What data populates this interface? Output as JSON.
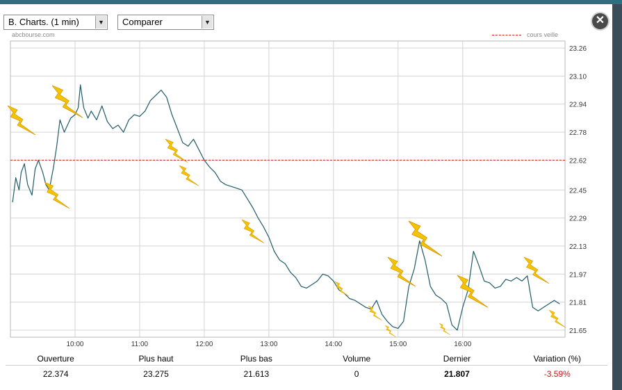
{
  "toolbar": {
    "chart_select": "B. Charts. (1 min)",
    "compare_select": "Comparer"
  },
  "source_label": "abcbourse.com",
  "legend_label": "cours veille",
  "colors": {
    "line": "#1f5a66",
    "reference": "#d02020",
    "grid": "#d4d4d4",
    "bolt": "#f5c400",
    "negative": "#d41010"
  },
  "icons": {
    "close": "close-icon",
    "select_arrow": "chevron-down-icon",
    "bolt": "lightning-bolt-icon"
  },
  "chart_data": {
    "type": "line",
    "x_ticks": [
      "10:00",
      "11:00",
      "12:00",
      "13:00",
      "14:00",
      "15:00",
      "16:00"
    ],
    "y_ticks": [
      "23.26",
      "23.10",
      "22.94",
      "22.78",
      "22.62",
      "22.45",
      "22.29",
      "22.13",
      "21.97",
      "21.81",
      "21.65"
    ],
    "ylim": [
      21.61,
      23.3
    ],
    "xlim": [
      "09:00",
      "17:35"
    ],
    "reference_line": {
      "label": "cours veille",
      "value": 22.62
    },
    "grid": true,
    "legend_position": "top-right",
    "series": [
      {
        "x": [
          "09:02",
          "09:05",
          "09:08",
          "09:10",
          "09:13",
          "09:16",
          "09:20",
          "09:23",
          "09:26",
          "09:30",
          "09:33",
          "09:36",
          "09:40",
          "09:43",
          "09:46",
          "09:50",
          "09:53",
          "09:56",
          "10:00",
          "10:03",
          "10:05",
          "10:08",
          "10:12",
          "10:15",
          "10:20",
          "10:25",
          "10:30",
          "10:35",
          "10:40",
          "10:45",
          "10:50",
          "10:55",
          "11:00",
          "11:05",
          "11:10",
          "11:15",
          "11:20",
          "11:25",
          "11:30",
          "11:35",
          "11:40",
          "11:45",
          "11:50",
          "11:55",
          "12:00",
          "12:05",
          "12:10",
          "12:15",
          "12:20",
          "12:25",
          "12:30",
          "12:35",
          "12:40",
          "12:45",
          "12:50",
          "12:55",
          "13:00",
          "13:05",
          "13:10",
          "13:15",
          "13:20",
          "13:25",
          "13:30",
          "13:35",
          "13:40",
          "13:45",
          "13:50",
          "13:55",
          "14:00",
          "14:05",
          "14:10",
          "14:15",
          "14:20",
          "14:25",
          "14:30",
          "14:35",
          "14:40",
          "14:45",
          "14:50",
          "14:55",
          "15:00",
          "15:05",
          "15:10",
          "15:15",
          "15:20",
          "15:25",
          "15:30",
          "15:35",
          "15:40",
          "15:45",
          "15:50",
          "15:55",
          "16:00",
          "16:05",
          "16:10",
          "16:15",
          "16:20",
          "16:25",
          "16:30",
          "16:35",
          "16:40",
          "16:45",
          "16:50",
          "16:55",
          "17:00",
          "17:05",
          "17:10",
          "17:15",
          "17:20",
          "17:25",
          "17:30"
        ],
        "y": [
          22.38,
          22.52,
          22.45,
          22.55,
          22.6,
          22.48,
          22.42,
          22.57,
          22.62,
          22.55,
          22.48,
          22.45,
          22.58,
          22.7,
          22.85,
          22.78,
          22.82,
          22.86,
          22.88,
          22.92,
          23.05,
          22.92,
          22.86,
          22.9,
          22.85,
          22.93,
          22.84,
          22.8,
          22.82,
          22.78,
          22.85,
          22.88,
          22.87,
          22.9,
          22.96,
          22.99,
          23.02,
          22.98,
          22.88,
          22.8,
          22.72,
          22.7,
          22.74,
          22.68,
          22.62,
          22.58,
          22.55,
          22.5,
          22.48,
          22.47,
          22.46,
          22.45,
          22.4,
          22.35,
          22.29,
          22.24,
          22.18,
          22.1,
          22.05,
          22.03,
          21.98,
          21.95,
          21.9,
          21.89,
          21.91,
          21.93,
          21.97,
          21.96,
          21.93,
          21.88,
          21.86,
          21.83,
          21.82,
          21.8,
          21.78,
          21.77,
          21.82,
          21.74,
          21.7,
          21.67,
          21.66,
          21.7,
          21.9,
          22.0,
          22.16,
          22.05,
          21.9,
          21.85,
          21.83,
          21.8,
          21.68,
          21.65,
          21.78,
          21.88,
          22.1,
          22.02,
          21.93,
          21.92,
          21.89,
          21.9,
          21.94,
          21.93,
          21.95,
          21.93,
          21.96,
          21.78,
          21.76,
          21.78,
          21.8,
          21.82,
          21.8
        ]
      }
    ]
  },
  "stats": {
    "headers": [
      "Ouverture",
      "Plus haut",
      "Plus bas",
      "Volume",
      "Dernier",
      "Variation (%)"
    ],
    "values": [
      "22.374",
      "23.275",
      "21.613",
      "0",
      "21.807",
      "-3.59%"
    ]
  }
}
